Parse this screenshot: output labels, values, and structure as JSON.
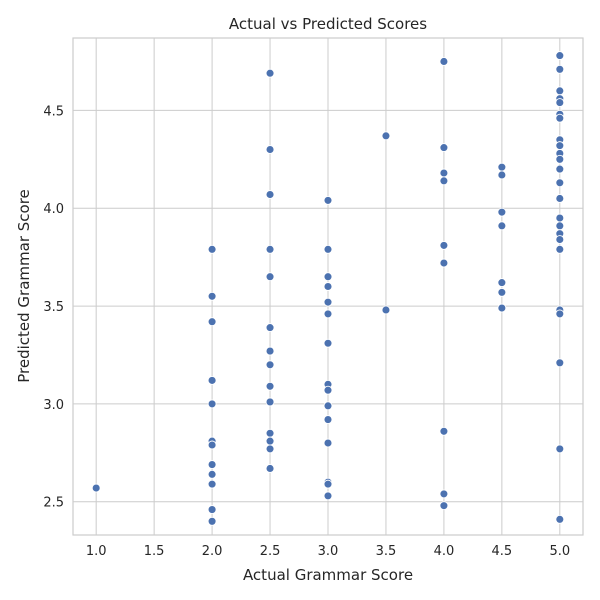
{
  "chart_data": {
    "type": "scatter",
    "title": "Actual vs Predicted Scores",
    "xlabel": "Actual Grammar Score",
    "ylabel": "Predicted Grammar Score",
    "xlim": [
      0.8,
      5.2
    ],
    "ylim": [
      2.33,
      4.87
    ],
    "xticks": [
      1.0,
      1.5,
      2.0,
      2.5,
      3.0,
      3.5,
      4.0,
      4.5,
      5.0
    ],
    "xtick_labels": [
      "1.0",
      "1.5",
      "2.0",
      "2.5",
      "3.0",
      "3.5",
      "4.0",
      "4.5",
      "5.0"
    ],
    "yticks": [
      2.5,
      3.0,
      3.5,
      4.0,
      4.5
    ],
    "ytick_labels": [
      "2.5",
      "3.0",
      "3.5",
      "4.0",
      "4.5"
    ],
    "grid": true,
    "color": "#4c72b0",
    "points": [
      {
        "x": 1.0,
        "y": 2.57
      },
      {
        "x": 2.0,
        "y": 3.79
      },
      {
        "x": 2.0,
        "y": 3.55
      },
      {
        "x": 2.0,
        "y": 3.42
      },
      {
        "x": 2.0,
        "y": 3.12
      },
      {
        "x": 2.0,
        "y": 3.0
      },
      {
        "x": 2.0,
        "y": 2.81
      },
      {
        "x": 2.0,
        "y": 2.79
      },
      {
        "x": 2.0,
        "y": 2.69
      },
      {
        "x": 2.0,
        "y": 2.64
      },
      {
        "x": 2.0,
        "y": 2.59
      },
      {
        "x": 2.0,
        "y": 2.46
      },
      {
        "x": 2.0,
        "y": 2.4
      },
      {
        "x": 2.5,
        "y": 4.69
      },
      {
        "x": 2.5,
        "y": 4.3
      },
      {
        "x": 2.5,
        "y": 4.07
      },
      {
        "x": 2.5,
        "y": 3.79
      },
      {
        "x": 2.5,
        "y": 3.65
      },
      {
        "x": 2.5,
        "y": 3.39
      },
      {
        "x": 2.5,
        "y": 3.27
      },
      {
        "x": 2.5,
        "y": 3.2
      },
      {
        "x": 2.5,
        "y": 3.09
      },
      {
        "x": 2.5,
        "y": 3.01
      },
      {
        "x": 2.5,
        "y": 2.85
      },
      {
        "x": 2.5,
        "y": 2.81
      },
      {
        "x": 2.5,
        "y": 2.77
      },
      {
        "x": 2.5,
        "y": 2.67
      },
      {
        "x": 3.0,
        "y": 4.04
      },
      {
        "x": 3.0,
        "y": 3.79
      },
      {
        "x": 3.0,
        "y": 3.65
      },
      {
        "x": 3.0,
        "y": 3.6
      },
      {
        "x": 3.0,
        "y": 3.52
      },
      {
        "x": 3.0,
        "y": 3.46
      },
      {
        "x": 3.0,
        "y": 3.31
      },
      {
        "x": 3.0,
        "y": 3.1
      },
      {
        "x": 3.0,
        "y": 3.07
      },
      {
        "x": 3.0,
        "y": 2.99
      },
      {
        "x": 3.0,
        "y": 2.92
      },
      {
        "x": 3.0,
        "y": 2.8
      },
      {
        "x": 3.0,
        "y": 2.6
      },
      {
        "x": 3.0,
        "y": 2.59
      },
      {
        "x": 3.0,
        "y": 2.53
      },
      {
        "x": 3.5,
        "y": 4.37
      },
      {
        "x": 3.5,
        "y": 3.48
      },
      {
        "x": 4.0,
        "y": 4.75
      },
      {
        "x": 4.0,
        "y": 4.31
      },
      {
        "x": 4.0,
        "y": 4.18
      },
      {
        "x": 4.0,
        "y": 4.14
      },
      {
        "x": 4.0,
        "y": 3.81
      },
      {
        "x": 4.0,
        "y": 3.72
      },
      {
        "x": 4.0,
        "y": 2.86
      },
      {
        "x": 4.0,
        "y": 2.54
      },
      {
        "x": 4.0,
        "y": 2.48
      },
      {
        "x": 4.5,
        "y": 4.21
      },
      {
        "x": 4.5,
        "y": 4.17
      },
      {
        "x": 4.5,
        "y": 3.98
      },
      {
        "x": 4.5,
        "y": 3.91
      },
      {
        "x": 4.5,
        "y": 3.62
      },
      {
        "x": 4.5,
        "y": 3.57
      },
      {
        "x": 4.5,
        "y": 3.49
      },
      {
        "x": 5.0,
        "y": 4.78
      },
      {
        "x": 5.0,
        "y": 4.71
      },
      {
        "x": 5.0,
        "y": 4.6
      },
      {
        "x": 5.0,
        "y": 4.56
      },
      {
        "x": 5.0,
        "y": 4.54
      },
      {
        "x": 5.0,
        "y": 4.48
      },
      {
        "x": 5.0,
        "y": 4.46
      },
      {
        "x": 5.0,
        "y": 4.35
      },
      {
        "x": 5.0,
        "y": 4.32
      },
      {
        "x": 5.0,
        "y": 4.28
      },
      {
        "x": 5.0,
        "y": 4.25
      },
      {
        "x": 5.0,
        "y": 4.2
      },
      {
        "x": 5.0,
        "y": 4.13
      },
      {
        "x": 5.0,
        "y": 4.05
      },
      {
        "x": 5.0,
        "y": 3.95
      },
      {
        "x": 5.0,
        "y": 3.91
      },
      {
        "x": 5.0,
        "y": 3.87
      },
      {
        "x": 5.0,
        "y": 3.84
      },
      {
        "x": 5.0,
        "y": 3.79
      },
      {
        "x": 5.0,
        "y": 3.48
      },
      {
        "x": 5.0,
        "y": 3.46
      },
      {
        "x": 5.0,
        "y": 3.21
      },
      {
        "x": 5.0,
        "y": 2.77
      },
      {
        "x": 5.0,
        "y": 2.41
      }
    ]
  }
}
